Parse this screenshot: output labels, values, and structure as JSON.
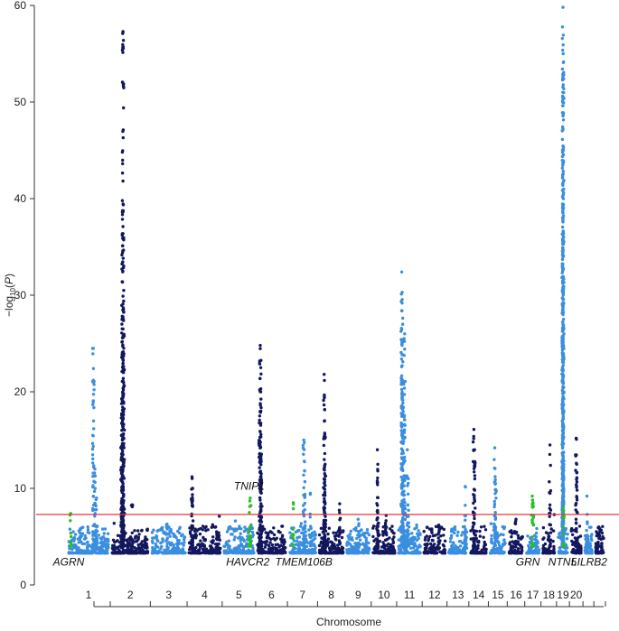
{
  "chart_data": {
    "type": "scatter",
    "title": "",
    "xlabel": "Chromosome",
    "ylabel": {
      "prefix": "−log",
      "sub": "10",
      "suffix": "(",
      "var": "P",
      "close": ")"
    },
    "ylim": [
      0,
      60
    ],
    "yticks": [
      0,
      10,
      20,
      30,
      40,
      50,
      60
    ],
    "grid": false,
    "legend": "none",
    "significance_threshold": 7.3,
    "chromosome_tick_labels": [
      "1",
      "2",
      "3",
      "4",
      "5",
      "6",
      "7",
      "8",
      "9",
      "10",
      "11",
      "12",
      "13",
      "14",
      "15",
      "16",
      "17",
      "18",
      "19",
      "20"
    ],
    "chromosomes": [
      {
        "id": "1",
        "length": 120,
        "color_key": "light",
        "gap_after": 0
      },
      {
        "id": "2",
        "length": 110,
        "color_key": "dark"
      },
      {
        "id": "3",
        "length": 100,
        "color_key": "light"
      },
      {
        "id": "4",
        "length": 95,
        "color_key": "dark"
      },
      {
        "id": "5",
        "length": 90,
        "color_key": "light"
      },
      {
        "id": "6",
        "length": 85,
        "color_key": "dark"
      },
      {
        "id": "7",
        "length": 80,
        "color_key": "light"
      },
      {
        "id": "8",
        "length": 72,
        "color_key": "dark"
      },
      {
        "id": "9",
        "length": 68,
        "color_key": "light"
      },
      {
        "id": "10",
        "length": 66,
        "color_key": "dark"
      },
      {
        "id": "11",
        "length": 66,
        "color_key": "light"
      },
      {
        "id": "12",
        "length": 64,
        "color_key": "dark"
      },
      {
        "id": "13",
        "length": 55,
        "color_key": "light"
      },
      {
        "id": "14",
        "length": 48,
        "color_key": "dark"
      },
      {
        "id": "15",
        "length": 46,
        "color_key": "light"
      },
      {
        "id": "16",
        "length": 42,
        "color_key": "dark"
      },
      {
        "id": "17",
        "length": 38,
        "color_key": "light"
      },
      {
        "id": "18",
        "length": 36,
        "color_key": "dark"
      },
      {
        "id": "19",
        "length": 28,
        "color_key": "light"
      },
      {
        "id": "20",
        "length": 30,
        "color_key": "dark"
      },
      {
        "id": "21",
        "length": 22,
        "color_key": "light"
      },
      {
        "id": "22",
        "length": 24,
        "color_key": "dark"
      }
    ],
    "peaks": [
      {
        "chrom": "1",
        "pos": 0.05,
        "p": 7.4,
        "highlight": true
      },
      {
        "chrom": "1",
        "pos": 0.62,
        "p": 24.5
      },
      {
        "chrom": "1",
        "pos": 0.66,
        "p": 12.0
      },
      {
        "chrom": "1",
        "pos": 0.7,
        "p": 9.0
      },
      {
        "chrom": "2",
        "pos": 0.3,
        "p": 57.3
      },
      {
        "chrom": "2",
        "pos": 0.28,
        "p": 36.2
      },
      {
        "chrom": "2",
        "pos": 0.32,
        "p": 30.5
      },
      {
        "chrom": "2",
        "pos": 0.27,
        "p": 27.0
      },
      {
        "chrom": "2",
        "pos": 0.31,
        "p": 21.0
      },
      {
        "chrom": "2",
        "pos": 0.26,
        "p": 15.5
      },
      {
        "chrom": "2",
        "pos": 0.55,
        "p": 8.3
      },
      {
        "chrom": "3",
        "pos": 0.45,
        "p": 6.3
      },
      {
        "chrom": "4",
        "pos": 0.1,
        "p": 11.2
      },
      {
        "chrom": "4",
        "pos": 0.12,
        "p": 10.0
      },
      {
        "chrom": "5",
        "pos": 0.88,
        "p": 9.0,
        "highlight": true
      },
      {
        "chrom": "5",
        "pos": 0.85,
        "p": 7.5,
        "highlight": true
      },
      {
        "chrom": "6",
        "pos": 0.1,
        "p": 24.8
      },
      {
        "chrom": "6",
        "pos": 0.12,
        "p": 22.5
      },
      {
        "chrom": "6",
        "pos": 0.08,
        "p": 17.5
      },
      {
        "chrom": "6",
        "pos": 0.11,
        "p": 13.5
      },
      {
        "chrom": "6",
        "pos": 0.14,
        "p": 10.8
      },
      {
        "chrom": "7",
        "pos": 0.15,
        "p": 8.5,
        "highlight": true
      },
      {
        "chrom": "7",
        "pos": 0.55,
        "p": 15.0
      },
      {
        "chrom": "7",
        "pos": 0.58,
        "p": 11.8
      },
      {
        "chrom": "7",
        "pos": 0.8,
        "p": 9.5
      },
      {
        "chrom": "8",
        "pos": 0.2,
        "p": 21.8
      },
      {
        "chrom": "8",
        "pos": 0.22,
        "p": 17.0
      },
      {
        "chrom": "8",
        "pos": 0.24,
        "p": 12.5
      },
      {
        "chrom": "8",
        "pos": 0.85,
        "p": 8.4
      },
      {
        "chrom": "9",
        "pos": 0.5,
        "p": 6.8
      },
      {
        "chrom": "10",
        "pos": 0.2,
        "p": 14.0
      },
      {
        "chrom": "10",
        "pos": 0.22,
        "p": 12.5
      },
      {
        "chrom": "10",
        "pos": 0.6,
        "p": 7.2
      },
      {
        "chrom": "11",
        "pos": 0.15,
        "p": 32.4
      },
      {
        "chrom": "11",
        "pos": 0.17,
        "p": 30.3
      },
      {
        "chrom": "11",
        "pos": 0.28,
        "p": 26.0
      },
      {
        "chrom": "11",
        "pos": 0.22,
        "p": 21.0
      },
      {
        "chrom": "11",
        "pos": 0.4,
        "p": 14.0
      },
      {
        "chrom": "11",
        "pos": 0.45,
        "p": 11.0
      },
      {
        "chrom": "12",
        "pos": 0.7,
        "p": 6.2
      },
      {
        "chrom": "13",
        "pos": 0.9,
        "p": 10.2
      },
      {
        "chrom": "14",
        "pos": 0.2,
        "p": 16.1
      },
      {
        "chrom": "14",
        "pos": 0.25,
        "p": 14.0
      },
      {
        "chrom": "15",
        "pos": 0.3,
        "p": 14.2
      },
      {
        "chrom": "15",
        "pos": 0.35,
        "p": 10.5
      },
      {
        "chrom": "16",
        "pos": 0.5,
        "p": 6.8
      },
      {
        "chrom": "17",
        "pos": 0.45,
        "p": 9.2,
        "highlight": true
      },
      {
        "chrom": "17",
        "pos": 0.5,
        "p": 8.5,
        "highlight": true
      },
      {
        "chrom": "18",
        "pos": 0.6,
        "p": 14.5
      },
      {
        "chrom": "19",
        "pos": 0.5,
        "p": 59.8
      },
      {
        "chrom": "19",
        "pos": 0.52,
        "p": 55.0
      },
      {
        "chrom": "19",
        "pos": 0.48,
        "p": 51.0
      },
      {
        "chrom": "19",
        "pos": 0.54,
        "p": 45.0
      },
      {
        "chrom": "19",
        "pos": 0.46,
        "p": 38.0
      },
      {
        "chrom": "19",
        "pos": 0.53,
        "p": 30.0
      },
      {
        "chrom": "19",
        "pos": 0.55,
        "p": 8.0,
        "highlight": true
      },
      {
        "chrom": "20",
        "pos": 0.5,
        "p": 15.2
      },
      {
        "chrom": "20",
        "pos": 0.55,
        "p": 12.5
      },
      {
        "chrom": "21",
        "pos": 0.3,
        "p": 9.2
      },
      {
        "chrom": "22",
        "pos": 0.4,
        "p": 6.0
      }
    ],
    "colors": {
      "light": "#3a8ee0",
      "dark": "#12175e",
      "highlight": "#26c026",
      "threshold": "#e33a3a",
      "axis": "#333333"
    },
    "gene_labels": [
      {
        "text": "AGRN",
        "chrom": "1",
        "pos": 0.0,
        "y": 2.0
      },
      {
        "text": "TNIP1",
        "chrom": "5",
        "pos": 0.85,
        "y": 9.5
      },
      {
        "text": "HAVCR2",
        "chrom": "5",
        "pos": 0.8,
        "y": 2.0
      },
      {
        "text": "TMEM106B",
        "chrom": "7",
        "pos": 0.55,
        "y": 2.0
      },
      {
        "text": "GRN",
        "chrom": "17",
        "pos": 0.1,
        "y": 2.0
      },
      {
        "text": "NTN5",
        "chrom": "19",
        "pos": 0.45,
        "y": 2.0
      },
      {
        "text": "LILRB2",
        "chrom": "21",
        "pos": 0.6,
        "y": 2.0
      }
    ]
  }
}
